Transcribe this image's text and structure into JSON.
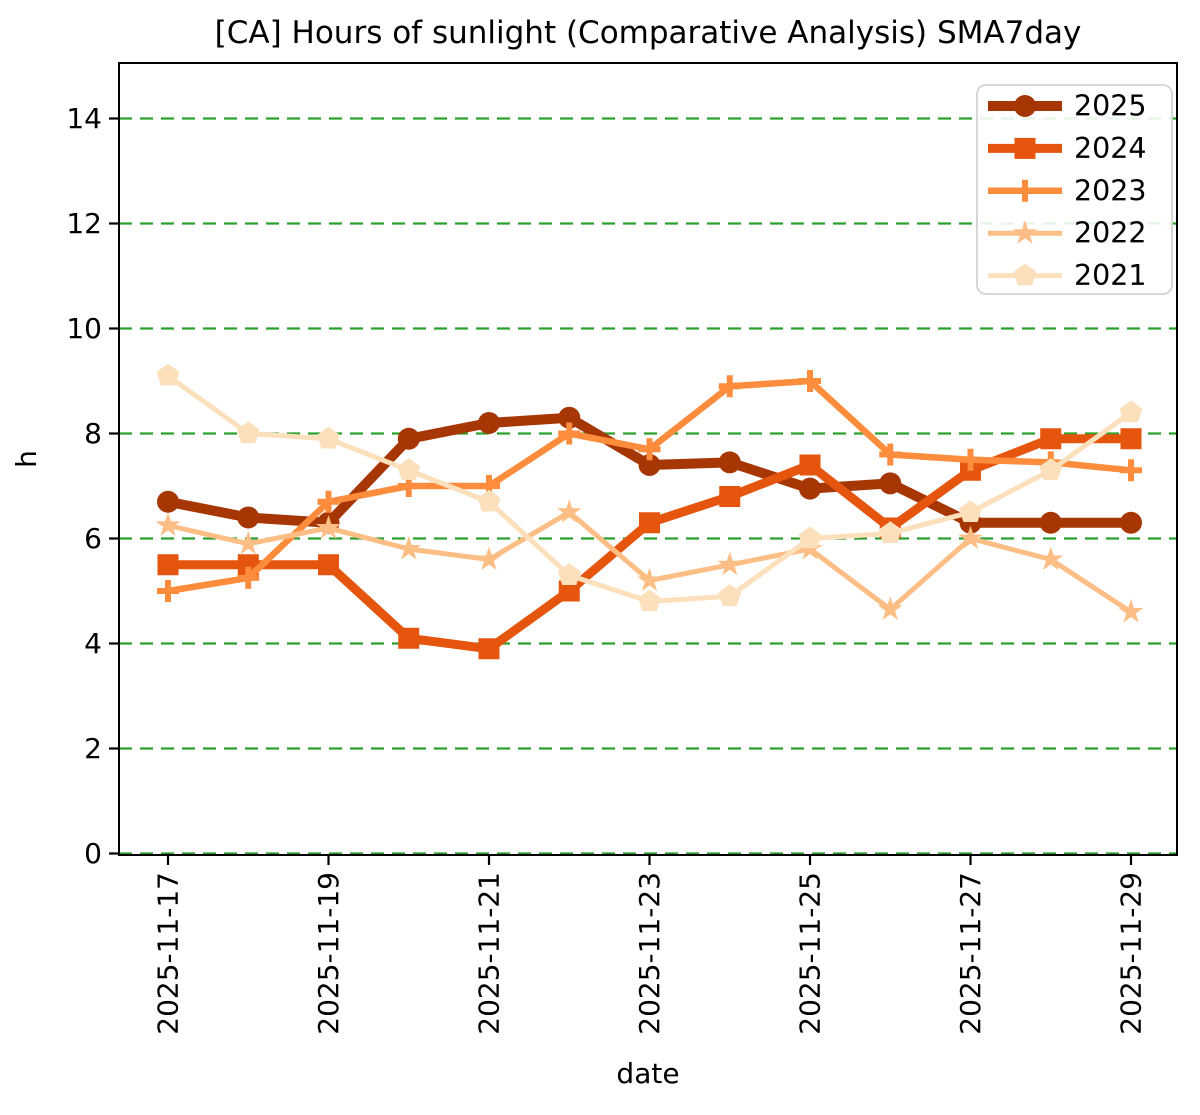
{
  "chart_data": {
    "type": "line",
    "title": "[CA] Hours of sunlight (Comparative Analysis) SMA7day",
    "xlabel": "date",
    "ylabel": "h",
    "categories": [
      "2025-11-17",
      "2025-11-18",
      "2025-11-19",
      "2025-11-20",
      "2025-11-21",
      "2025-11-22",
      "2025-11-23",
      "2025-11-24",
      "2025-11-25",
      "2025-11-26",
      "2025-11-27",
      "2025-11-28",
      "2025-11-29"
    ],
    "x_tick_step": 2,
    "x_tick_labels_shown": [
      "2025-11-17",
      "2025-11-19",
      "2025-11-21",
      "2025-11-23",
      "2025-11-25",
      "2025-11-27",
      "2025-11-29"
    ],
    "series": [
      {
        "name": "2025",
        "color": "#a63603",
        "marker": "circle",
        "linewidth": 10,
        "values": [
          6.7,
          6.4,
          6.3,
          7.9,
          8.2,
          8.3,
          7.4,
          7.45,
          6.95,
          7.05,
          6.3,
          6.3,
          6.3
        ]
      },
      {
        "name": "2024",
        "color": "#e6550d",
        "marker": "square",
        "linewidth": 9,
        "values": [
          5.5,
          5.5,
          5.5,
          4.1,
          3.9,
          5.0,
          6.3,
          6.8,
          7.4,
          6.2,
          7.3,
          7.9,
          7.9
        ]
      },
      {
        "name": "2023",
        "color": "#fd8d3c",
        "marker": "plus",
        "linewidth": 6.5,
        "values": [
          5.0,
          5.25,
          6.7,
          7.0,
          7.0,
          8.0,
          7.7,
          8.9,
          9.0,
          7.6,
          7.5,
          7.45,
          7.3
        ]
      },
      {
        "name": "2022",
        "color": "#fdbe85",
        "marker": "star",
        "linewidth": 5,
        "values": [
          6.25,
          5.9,
          6.2,
          5.8,
          5.6,
          6.5,
          5.2,
          5.5,
          5.8,
          4.65,
          6.0,
          5.6,
          4.6
        ]
      },
      {
        "name": "2021",
        "color": "#fcdfbb",
        "marker": "pentagon",
        "linewidth": 5,
        "values": [
          9.1,
          8.0,
          7.9,
          7.3,
          6.7,
          5.3,
          4.8,
          4.9,
          6.0,
          6.1,
          6.5,
          7.3,
          8.4
        ]
      }
    ],
    "ylim": [
      0,
      15.1
    ],
    "yticks": [
      0,
      2,
      4,
      6,
      8,
      10,
      12,
      14
    ],
    "grid": {
      "axis": "y",
      "style": "dashed",
      "color": "#2ca02c"
    },
    "legend_position": "upper right",
    "axis_color": "#000000",
    "plot_background": "#ffffff"
  }
}
